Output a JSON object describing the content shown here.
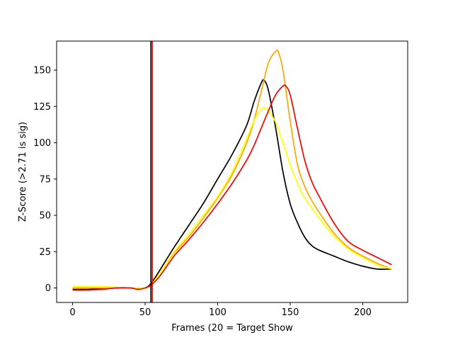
{
  "chart_data": {
    "type": "line",
    "title": "",
    "xlabel": "Frames (20 = Target Show",
    "ylabel": "Z-Score (>2.71 is sig)",
    "xlim": [
      -11,
      231
    ],
    "ylim": [
      -10,
      170
    ],
    "xticks": [
      0,
      50,
      100,
      150,
      200
    ],
    "yticks": [
      0,
      25,
      50,
      75,
      100,
      125,
      150
    ],
    "grid": false,
    "legend": "none",
    "vlines": [
      {
        "x": 54,
        "color": "#000000"
      },
      {
        "x": 55,
        "color": "#ff0000"
      }
    ],
    "series": [
      {
        "color": "#000000",
        "x": [
          0,
          10,
          20,
          30,
          40,
          45,
          50,
          54,
          60,
          70,
          80,
          90,
          100,
          110,
          120,
          125,
          130,
          132,
          135,
          140,
          145,
          150,
          155,
          160,
          165,
          170,
          180,
          190,
          200,
          210,
          220
        ],
        "y": [
          -1,
          -1,
          -0.5,
          0,
          0,
          -0.5,
          0,
          3,
          12,
          28,
          43,
          58,
          75,
          92,
          112,
          128,
          141,
          143,
          136,
          110,
          80,
          58,
          45,
          35,
          29,
          26,
          22,
          18,
          15,
          13,
          13
        ]
      },
      {
        "color": "#ffa500",
        "x": [
          0,
          10,
          20,
          30,
          40,
          45,
          50,
          54,
          60,
          70,
          80,
          90,
          100,
          110,
          120,
          125,
          130,
          135,
          140,
          142,
          145,
          150,
          155,
          160,
          165,
          170,
          180,
          190,
          200,
          210,
          220
        ],
        "y": [
          0,
          0,
          0,
          0,
          0,
          0,
          0,
          2,
          10,
          24,
          35,
          48,
          62,
          78,
          100,
          115,
          135,
          155,
          163,
          162,
          150,
          115,
          85,
          70,
          60,
          52,
          38,
          28,
          22,
          17,
          13
        ]
      },
      {
        "color": "#ffff00",
        "x": [
          0,
          10,
          20,
          30,
          40,
          45,
          50,
          54,
          60,
          70,
          80,
          90,
          100,
          110,
          120,
          125,
          130,
          133,
          135,
          140,
          145,
          150,
          155,
          160,
          165,
          170,
          180,
          190,
          200,
          210,
          220
        ],
        "y": [
          1,
          1,
          1,
          0.5,
          0,
          0,
          0,
          2,
          10,
          25,
          37,
          50,
          63,
          80,
          103,
          115,
          123,
          124,
          122,
          114,
          100,
          85,
          72,
          62,
          55,
          48,
          36,
          27,
          21,
          16,
          13
        ]
      },
      {
        "color": "#ff0000",
        "x": [
          0,
          10,
          20,
          30,
          40,
          45,
          50,
          54,
          60,
          70,
          80,
          90,
          100,
          110,
          120,
          125,
          130,
          135,
          140,
          145,
          147,
          150,
          155,
          160,
          165,
          170,
          180,
          190,
          200,
          210,
          220
        ],
        "y": [
          -1.5,
          -1.5,
          -1,
          0,
          0,
          -1,
          0,
          2,
          8,
          22,
          33,
          45,
          58,
          72,
          88,
          98,
          110,
          122,
          133,
          139,
          139,
          133,
          110,
          88,
          73,
          63,
          45,
          32,
          26,
          21,
          16
        ]
      }
    ]
  }
}
